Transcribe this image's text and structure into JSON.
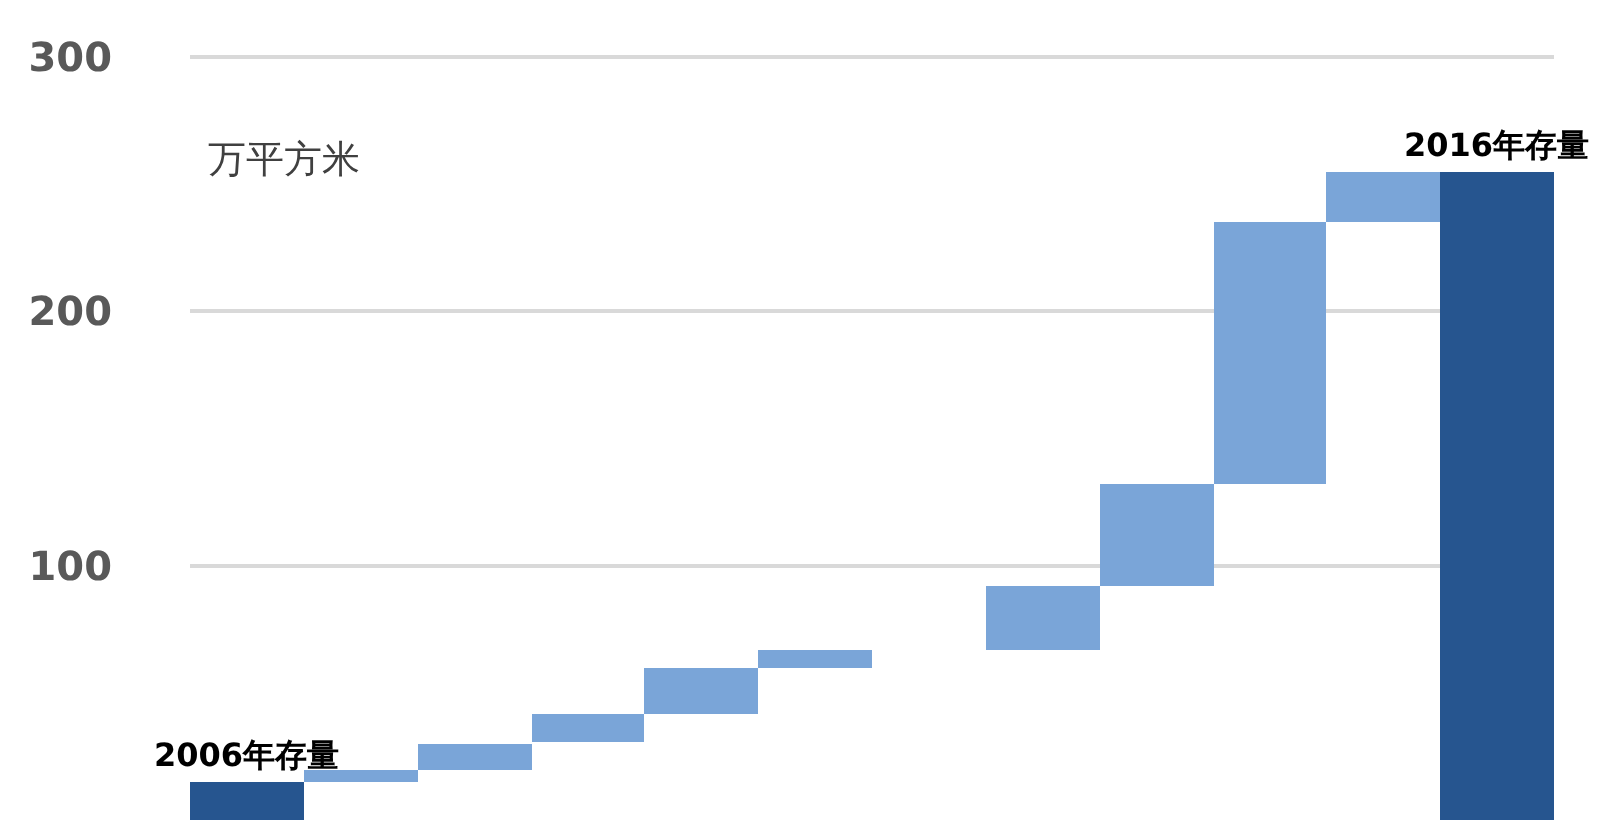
{
  "chart_data": {
    "type": "bar",
    "ylabel": "万平方米",
    "categories": [
      null,
      null,
      null,
      null,
      null,
      null,
      null,
      null,
      null,
      null,
      null,
      null
    ],
    "values": [
      15,
      5,
      10,
      11,
      18,
      7,
      null,
      25,
      40,
      103,
      20,
      255
    ],
    "base": [
      0,
      15,
      20,
      31,
      42,
      60,
      null,
      67,
      92,
      132,
      235,
      0
    ],
    "colors": [
      "#26558f",
      "#7aa5d8",
      "#7aa5d8",
      "#7aa5d8",
      "#7aa5d8",
      "#7aa5d8",
      "#7aa5d8",
      "#7aa5d8",
      "#7aa5d8",
      "#7aa5d8",
      "#7aa5d8",
      "#26558f"
    ],
    "annotations": [
      {
        "text": "2006年存量",
        "y": 15
      },
      {
        "text": "2016年存量",
        "y": 255
      }
    ],
    "ylim": [
      0,
      302
    ],
    "yticks": [
      100,
      200,
      300
    ],
    "grid": "y",
    "legend": false
  }
}
